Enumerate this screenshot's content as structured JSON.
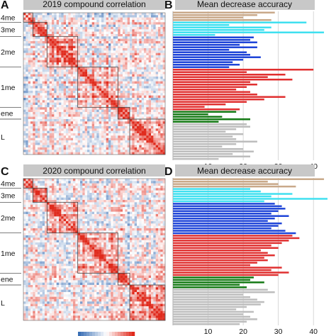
{
  "panels": {
    "A": {
      "letter": "A",
      "title": "2019 compound correlation"
    },
    "B": {
      "letter": "B",
      "title": "Mean decrease accuracy"
    },
    "C": {
      "letter": "C",
      "title": "2020 compound correlation"
    },
    "D": {
      "letter": "D",
      "title": "Mean decrease accuracy"
    }
  },
  "group_labels": [
    "4me",
    "3me",
    "2me",
    "1me",
    "ene",
    "L"
  ],
  "colors": {
    "banner": "#c8c8c8",
    "tan": "#c9a98a",
    "cyan": "#40e0f0",
    "blue": "#1f45d8",
    "red": "#e03030",
    "green": "#157a15",
    "gray": "#bdbdbd",
    "heat_neg": "#3a6fb5",
    "heat_pos": "#e02a1c"
  },
  "chart_data": [
    {
      "type": "heatmap",
      "panel": "A",
      "title": "2019 compound correlation",
      "size": 60,
      "groups": [
        {
          "name": "4me",
          "count": 4
        },
        {
          "name": "3me",
          "count": 6
        },
        {
          "name": "2me",
          "count": 13
        },
        {
          "name": "1me",
          "count": 17
        },
        {
          "name": "ene",
          "count": 5
        },
        {
          "name": "L",
          "count": 15
        }
      ],
      "color_scale": [
        -1,
        1
      ]
    },
    {
      "type": "bar",
      "orientation": "horizontal",
      "panel": "B",
      "title": "Mean decrease accuracy",
      "xlim": [
        0,
        44
      ],
      "xticks": [
        10,
        20,
        30,
        40
      ],
      "series": [
        {
          "group": "4me",
          "color": "tan",
          "values": [
            29,
            24,
            20,
            28
          ]
        },
        {
          "group": "3me",
          "color": "cyan",
          "values": [
            38,
            16,
            28,
            26,
            43,
            12
          ]
        },
        {
          "group": "2me",
          "color": "blue",
          "values": [
            23,
            22,
            24,
            19,
            24,
            16,
            21,
            22,
            25,
            20,
            17,
            19,
            16
          ]
        },
        {
          "group": "1me",
          "color": "red",
          "values": [
            40,
            21,
            32,
            27,
            34,
            22,
            24,
            21,
            18,
            22,
            24,
            32,
            26,
            21,
            15,
            9,
            19
          ]
        },
        {
          "group": "ene",
          "color": "green",
          "values": [
            18,
            10,
            14,
            22,
            13
          ]
        },
        {
          "group": "L",
          "color": "gray",
          "values": [
            21,
            22,
            18,
            15,
            20,
            17,
            18,
            24,
            18,
            14,
            20,
            23,
            17,
            22,
            13
          ]
        }
      ]
    },
    {
      "type": "heatmap",
      "panel": "C",
      "title": "2020 compound correlation",
      "size": 60,
      "groups": [
        {
          "name": "4me",
          "count": 4
        },
        {
          "name": "3me",
          "count": 6
        },
        {
          "name": "2me",
          "count": 13
        },
        {
          "name": "1me",
          "count": 17
        },
        {
          "name": "ene",
          "count": 5
        },
        {
          "name": "L",
          "count": 15
        }
      ],
      "color_scale": [
        -1,
        1
      ]
    },
    {
      "type": "bar",
      "orientation": "horizontal",
      "panel": "D",
      "title": "Mean decrease accuracy",
      "xlim": [
        0,
        44
      ],
      "xticks": [
        10,
        20,
        30,
        40
      ],
      "series": [
        {
          "group": "4me",
          "color": "tan",
          "values": [
            43,
            27,
            30,
            35
          ]
        },
        {
          "group": "3me",
          "color": "cyan",
          "values": [
            22,
            25,
            34,
            28,
            44,
            26
          ]
        },
        {
          "group": "2me",
          "color": "blue",
          "values": [
            29,
            31,
            32,
            30,
            28,
            33,
            29,
            27,
            31,
            30,
            28,
            32,
            35
          ]
        },
        {
          "group": "1me",
          "color": "red",
          "values": [
            34,
            36,
            33,
            31,
            28,
            30,
            25,
            27,
            29,
            26,
            27,
            24,
            22,
            31,
            28,
            33,
            30
          ]
        },
        {
          "group": "ene",
          "color": "green",
          "values": [
            23,
            22,
            26,
            19,
            21
          ]
        },
        {
          "group": "L",
          "color": "gray",
          "values": [
            27,
            29,
            20,
            22,
            24,
            26,
            25,
            21,
            18,
            23,
            20,
            22,
            24,
            21,
            19
          ]
        }
      ]
    }
  ]
}
